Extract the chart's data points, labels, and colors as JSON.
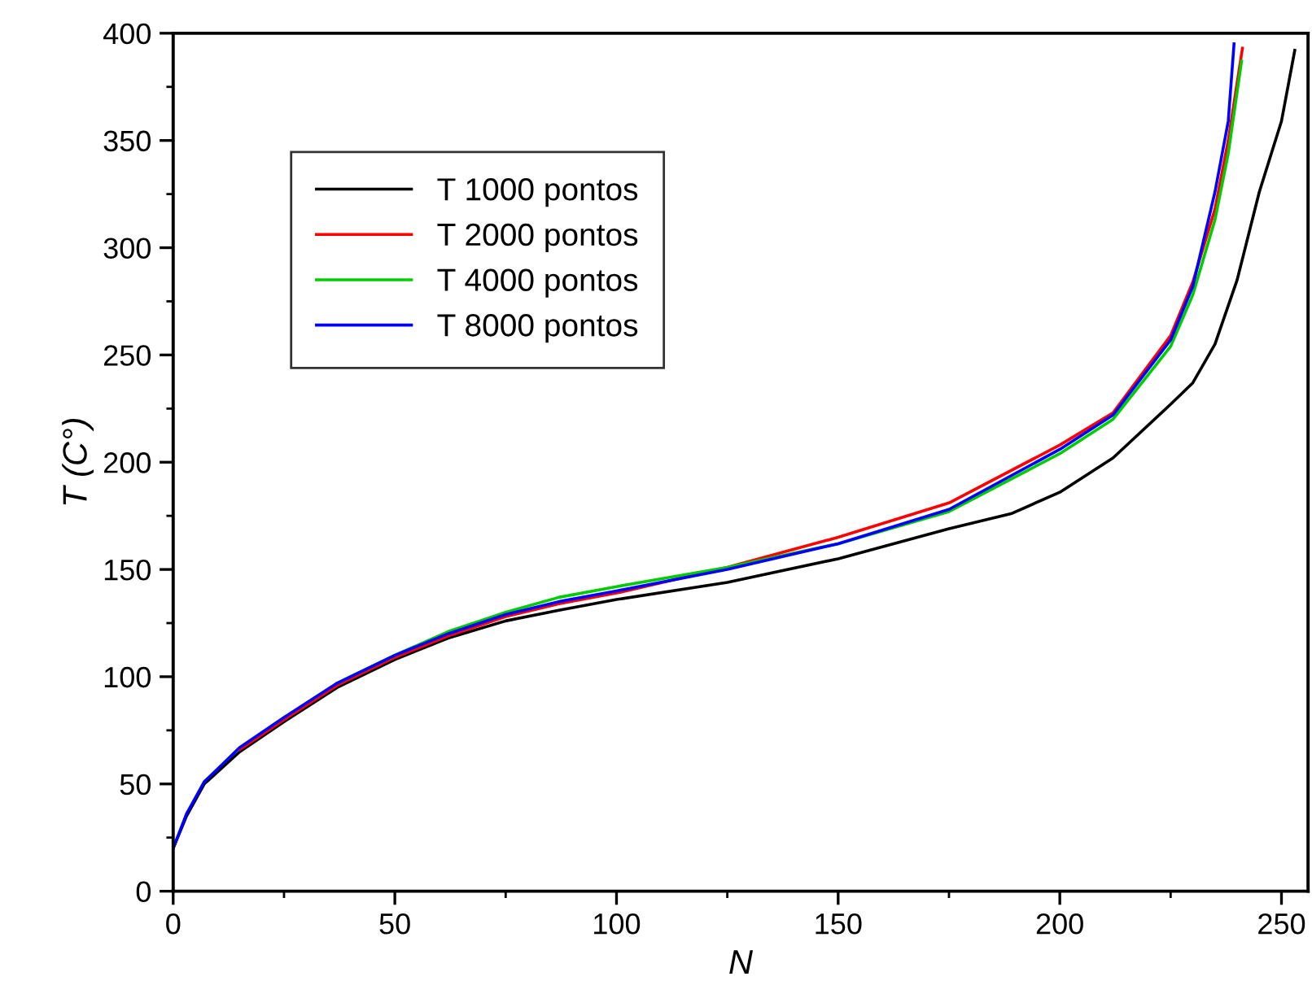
{
  "chart_data": {
    "type": "line",
    "xlabel": "N",
    "ylabel": "T (C°)",
    "xlim": [
      0,
      256
    ],
    "xticks": [
      0,
      50,
      100,
      150,
      200,
      250
    ],
    "ylim": [
      0,
      400
    ],
    "yticks": [
      0,
      50,
      100,
      150,
      200,
      250,
      300,
      350,
      400
    ],
    "grid": false,
    "legend": "top left",
    "marker": "none",
    "line_style": "solid",
    "series": [
      {
        "name": "T 1000 pontos",
        "color": "#000000",
        "x": [
          0,
          3,
          7,
          15,
          25,
          37,
          50,
          62,
          75,
          87,
          100,
          125,
          150,
          175,
          189,
          200,
          212,
          225,
          230,
          235,
          240,
          245,
          250,
          253
        ],
        "values": [
          20,
          35,
          50,
          65,
          79,
          95,
          108,
          118,
          126,
          131,
          136,
          144,
          155,
          169,
          176,
          186,
          202,
          227,
          237,
          255,
          285,
          326,
          359,
          392
        ]
      },
      {
        "name": "T 2000 pontos",
        "color": "#ff0000",
        "x": [
          15,
          25,
          37,
          50,
          62,
          75,
          87,
          100,
          125,
          150,
          175,
          200,
          212,
          225,
          230,
          235,
          238,
          241.2
        ],
        "values": [
          66,
          80,
          96,
          109,
          119,
          128,
          134,
          139,
          151,
          165,
          181,
          208,
          223,
          259,
          284,
          318,
          350,
          393
        ]
      },
      {
        "name": "T 4000 pontos",
        "color": "#00cc00",
        "x": [
          37,
          50,
          62,
          75,
          87,
          100,
          125,
          150,
          175,
          200,
          212,
          225,
          230,
          235,
          238,
          241
        ],
        "values": [
          97,
          110,
          121,
          130,
          137,
          142,
          151,
          162,
          177,
          204,
          220,
          254,
          278,
          313,
          344,
          387
        ]
      },
      {
        "name": "T 8000 pontos",
        "color": "#0000ff",
        "x": [
          0,
          3,
          7,
          15,
          25,
          37,
          50,
          62,
          75,
          87,
          100,
          125,
          150,
          175,
          200,
          212,
          225,
          230,
          235,
          238,
          239.3
        ],
        "values": [
          20,
          36,
          51,
          67,
          81,
          97,
          110,
          120,
          129,
          135,
          140,
          150,
          162,
          178,
          206,
          222,
          257,
          282,
          326,
          359,
          395
        ]
      }
    ]
  }
}
